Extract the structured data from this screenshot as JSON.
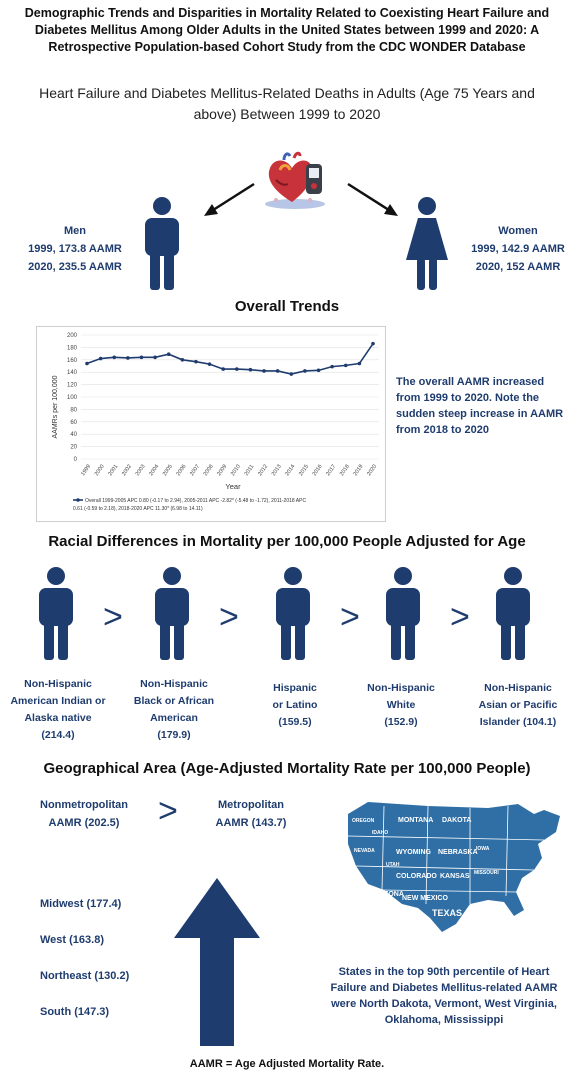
{
  "header": {
    "title_line1": "Demographic Trends and Disparities in Mortality Related to Coexisting Heart Failure and",
    "title_line2": "Diabetes Mellitus Among Older Adults in the United States between 1999 and 2020: A",
    "title_line3": "Retrospective Population-based Cohort Study from the CDC WONDER Database",
    "subtitle_line1": "Heart Failure and Diabetes Mellitus-Related Deaths in Adults (Age 75 Years and",
    "subtitle_line2": "above) Between 1999 to 2020"
  },
  "sex": {
    "men": {
      "label": "Men",
      "line1": "1999, 173.8 AAMR",
      "line2": "2020, 235.5 AAMR"
    },
    "women": {
      "label": "Women",
      "line1": "1999, 142.9 AAMR",
      "line2": "2020, 152 AAMR"
    }
  },
  "overall": {
    "title": "Overall Trends",
    "note_line1": "The overall AAMR increased",
    "note_line2": "from 1999 to 2020. Note the",
    "note_line3": "sudden steep increase in AAMR",
    "note_line4": "from 2018 to 2020"
  },
  "chart_data": {
    "type": "line",
    "x": [
      "1999",
      "2000",
      "2001",
      "2002",
      "2003",
      "2004",
      "2005",
      "2006",
      "2007",
      "2008",
      "2009",
      "2010",
      "2011",
      "2012",
      "2013",
      "2014",
      "2015",
      "2016",
      "2017",
      "2018",
      "2019",
      "2020"
    ],
    "series": [
      {
        "name": "Overall 1999-2005 APC 0.80 (-0.17 to 2.94), 2005-2011 APC -2.82* (-5.48 to -1.72), 2011-2018 APC 0.61 (-0.59 to 2.18), 2018-2020 APC 11.30* (6.98 to 14.11)",
        "values": [
          154,
          162,
          164,
          163,
          164,
          164,
          169,
          160,
          157,
          153,
          145,
          145,
          144,
          142,
          142,
          137,
          142,
          143,
          149,
          151,
          154,
          186
        ]
      }
    ],
    "legend_line1": "Overall 1999-2005 APC 0.80 (-0.17 to 2.94), 2005-2011 APC -2.82* (-5.48 to -1.72), 2011-2018 APC",
    "legend_line2": "0.61 (-0.59 to 2.18), 2018-2020 APC 11.30* (6.98 to 14.11)",
    "xlabel": "Year",
    "ylabel": "AAMRs per 100,000",
    "ylim": [
      0,
      200
    ],
    "yticks": [
      0,
      20,
      40,
      60,
      80,
      100,
      120,
      140,
      160,
      180,
      200
    ],
    "grid": true,
    "color": "#1f3c6e"
  },
  "racial": {
    "title": "Racial Differences in Mortality per 100,000 People Adjusted for Age",
    "comparator": ">",
    "groups": [
      {
        "lines": [
          "Non-Hispanic",
          "American Indian or",
          "Alaska native",
          "(214.4)"
        ]
      },
      {
        "lines": [
          "Non-Hispanic",
          "Black or African",
          "American",
          "(179.9)"
        ]
      },
      {
        "lines": [
          "Hispanic",
          "or Latino",
          "(159.5)"
        ]
      },
      {
        "lines": [
          "Non-Hispanic",
          "White",
          "(152.9)"
        ]
      },
      {
        "lines": [
          "Non-Hispanic",
          "Asian or Pacific",
          "Islander (104.1)"
        ]
      }
    ]
  },
  "geo": {
    "title": "Geographical Area (Age-Adjusted Mortality Rate per 100,000 People)",
    "nonmetro_line1": "Nonmetropolitan",
    "nonmetro_line2": "AAMR (202.5)",
    "metro_line1": "Metropolitan",
    "metro_line2": "AAMR (143.7)",
    "comparator": ">",
    "regions": [
      "Midwest (177.4)",
      "West (163.8)",
      "Northeast (130.2)",
      "South (147.3)"
    ],
    "states_line1": "States in the top 90th percentile of Heart",
    "states_line2": "Failure and Diabetes Mellitus-related AAMR",
    "states_line3": "were North Dakota, Vermont, West Virginia,",
    "states_line4": "Oklahoma, Mississippi",
    "map_labels": [
      "MONTANA",
      "DAKOTA",
      "WYOMING",
      "NEBRASKA",
      "COLORADO",
      "KANSAS",
      "ARIZONA",
      "NEW MEXICO",
      "TEXAS",
      "UTAH",
      "NEVADA",
      "IDAHO",
      "OREGON",
      "IOWA",
      "MISSOURI"
    ]
  },
  "footer": {
    "text": "AAMR = Age Adjusted Mortality Rate."
  },
  "colors": {
    "navy": "#1f3c6e",
    "map_blue": "#2f6fa6"
  }
}
